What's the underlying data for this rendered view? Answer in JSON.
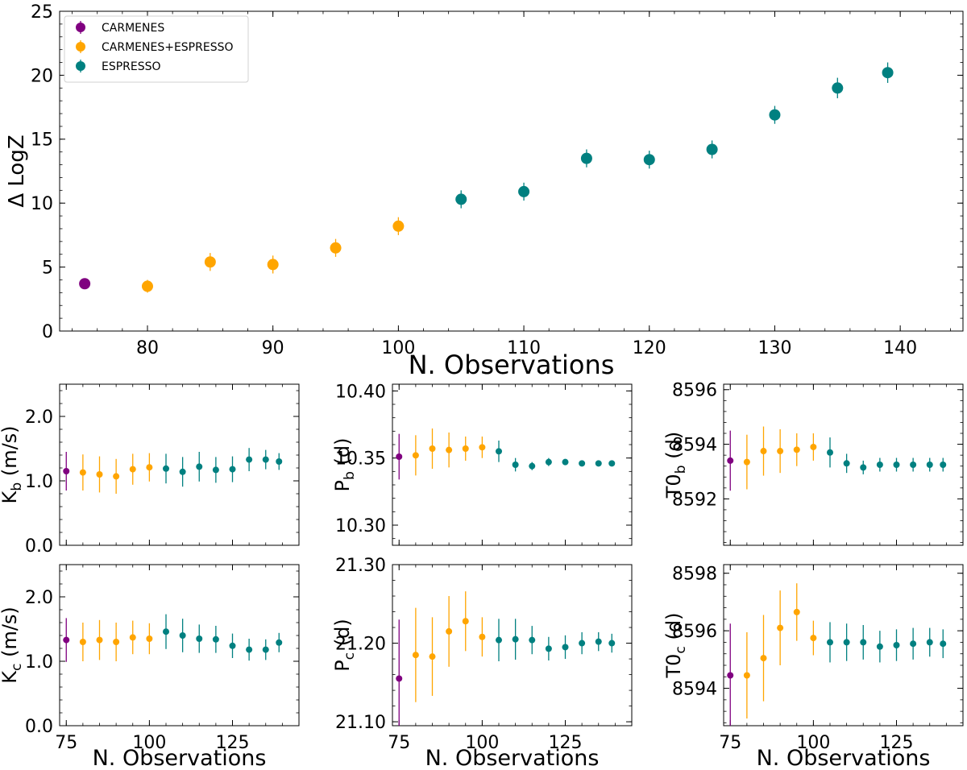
{
  "colors": {
    "CARMENES": "#800080",
    "CARMENES+ESPRESSO": "#FFA500",
    "ESPRESSO": "#008080"
  },
  "chart_data": [
    {
      "id": "main",
      "type": "scatter",
      "xlabel": "N. Observations",
      "ylabel": "Δ LogZ",
      "xlim": [
        73,
        145
      ],
      "ylim": [
        0,
        25
      ],
      "xticks": [
        80,
        90,
        100,
        110,
        120,
        130,
        140
      ],
      "yticks": [
        0,
        5,
        10,
        15,
        20,
        25
      ],
      "tick_labels_x": [
        "80",
        "90",
        "100",
        "110",
        "120",
        "130",
        "140"
      ],
      "tick_labels_y": [
        "0",
        "5",
        "10",
        "15",
        "20",
        "25"
      ],
      "legend": {
        "position": "top-left",
        "entries": [
          "CARMENES",
          "CARMENES+ESPRESSO",
          "ESPRESSO"
        ]
      },
      "series": [
        {
          "name": "CARMENES",
          "x": [
            75
          ],
          "y": [
            3.7
          ],
          "err": [
            0.4
          ]
        },
        {
          "name": "CARMENES+ESPRESSO",
          "x": [
            80,
            85,
            90,
            95,
            100
          ],
          "y": [
            3.5,
            5.4,
            5.2,
            6.5,
            8.2
          ],
          "err": [
            0.5,
            0.7,
            0.7,
            0.7,
            0.7
          ]
        },
        {
          "name": "ESPRESSO",
          "x": [
            105,
            110,
            115,
            120,
            125,
            130,
            135,
            139
          ],
          "y": [
            10.3,
            10.9,
            13.5,
            13.4,
            14.2,
            16.9,
            19.0,
            20.2
          ],
          "err": [
            0.7,
            0.7,
            0.7,
            0.7,
            0.7,
            0.7,
            0.8,
            0.8
          ]
        }
      ]
    },
    {
      "id": "Kb",
      "type": "scatter",
      "xlabel": "",
      "ylabel": "K_b (m/s)",
      "ylabel_main": "K",
      "ylabel_sub": "b",
      "ylabel_suffix": " (m/s)",
      "xlim": [
        73,
        145
      ],
      "ylim": [
        0,
        2.5
      ],
      "xticks": [
        75,
        100,
        125
      ],
      "yticks": [
        0,
        1,
        2
      ],
      "tick_labels_x": [
        "",
        "",
        ""
      ],
      "tick_labels_y": [
        "0.0",
        "1.0",
        "2.0"
      ],
      "x": [
        75,
        80,
        85,
        90,
        95,
        100,
        105,
        110,
        115,
        120,
        125,
        130,
        135,
        139
      ],
      "series_of_point": [
        "CARMENES",
        "CARMENES+ESPRESSO",
        "CARMENES+ESPRESSO",
        "CARMENES+ESPRESSO",
        "CARMENES+ESPRESSO",
        "CARMENES+ESPRESSO",
        "ESPRESSO",
        "ESPRESSO",
        "ESPRESSO",
        "ESPRESSO",
        "ESPRESSO",
        "ESPRESSO",
        "ESPRESSO",
        "ESPRESSO"
      ],
      "y": [
        1.15,
        1.13,
        1.1,
        1.07,
        1.18,
        1.21,
        1.19,
        1.14,
        1.22,
        1.17,
        1.18,
        1.33,
        1.33,
        1.3
      ],
      "err": [
        0.3,
        0.28,
        0.28,
        0.27,
        0.24,
        0.22,
        0.23,
        0.23,
        0.23,
        0.2,
        0.2,
        0.18,
        0.15,
        0.13
      ]
    },
    {
      "id": "Pb",
      "type": "scatter",
      "xlabel": "",
      "ylabel": "P_b (d)",
      "ylabel_main": "P",
      "ylabel_sub": "b",
      "ylabel_suffix": " (d)",
      "xlim": [
        73,
        145
      ],
      "ylim": [
        10.285,
        10.405
      ],
      "xticks": [
        75,
        100,
        125
      ],
      "yticks": [
        10.3,
        10.35,
        10.4
      ],
      "tick_labels_x": [
        "",
        "",
        ""
      ],
      "tick_labels_y": [
        "10.30",
        "10.35",
        "10.40"
      ],
      "x": [
        75,
        80,
        85,
        90,
        95,
        100,
        105,
        110,
        115,
        120,
        125,
        130,
        135,
        139
      ],
      "series_of_point": [
        "CARMENES",
        "CARMENES+ESPRESSO",
        "CARMENES+ESPRESSO",
        "CARMENES+ESPRESSO",
        "CARMENES+ESPRESSO",
        "CARMENES+ESPRESSO",
        "ESPRESSO",
        "ESPRESSO",
        "ESPRESSO",
        "ESPRESSO",
        "ESPRESSO",
        "ESPRESSO",
        "ESPRESSO",
        "ESPRESSO"
      ],
      "y": [
        10.351,
        10.352,
        10.357,
        10.356,
        10.357,
        10.358,
        10.355,
        10.345,
        10.344,
        10.347,
        10.347,
        10.346,
        10.346,
        10.346
      ],
      "err": [
        0.017,
        0.015,
        0.015,
        0.013,
        0.009,
        0.008,
        0.008,
        0.005,
        0.003,
        0.003,
        0.002,
        0.002,
        0.002,
        0.002
      ]
    },
    {
      "id": "T0b",
      "type": "scatter",
      "xlabel": "",
      "ylabel": "T0_b (d)",
      "ylabel_main": "T0",
      "ylabel_sub": "b",
      "ylabel_suffix": " (d)",
      "xlim": [
        73,
        145
      ],
      "ylim": [
        8590.3,
        8596.2
      ],
      "xticks": [
        75,
        100,
        125
      ],
      "yticks": [
        8592,
        8594,
        8596
      ],
      "tick_labels_x": [
        "",
        "",
        ""
      ],
      "tick_labels_y": [
        "8592",
        "8594",
        "8596"
      ],
      "x": [
        75,
        80,
        85,
        90,
        95,
        100,
        105,
        110,
        115,
        120,
        125,
        130,
        135,
        139
      ],
      "series_of_point": [
        "CARMENES",
        "CARMENES+ESPRESSO",
        "CARMENES+ESPRESSO",
        "CARMENES+ESPRESSO",
        "CARMENES+ESPRESSO",
        "CARMENES+ESPRESSO",
        "ESPRESSO",
        "ESPRESSO",
        "ESPRESSO",
        "ESPRESSO",
        "ESPRESSO",
        "ESPRESSO",
        "ESPRESSO",
        "ESPRESSO"
      ],
      "y": [
        8593.4,
        8593.35,
        8593.75,
        8593.75,
        8593.8,
        8593.9,
        8593.7,
        8593.3,
        8593.15,
        8593.25,
        8593.25,
        8593.25,
        8593.25,
        8593.25
      ],
      "err": [
        1.1,
        1.0,
        0.9,
        0.8,
        0.6,
        0.5,
        0.55,
        0.35,
        0.25,
        0.25,
        0.25,
        0.25,
        0.25,
        0.25
      ]
    },
    {
      "id": "Kc",
      "type": "scatter",
      "xlabel": "N. Observations",
      "ylabel": "K_c (m/s)",
      "ylabel_main": "K",
      "ylabel_sub": "c",
      "ylabel_suffix": " (m/s)",
      "xlim": [
        73,
        145
      ],
      "ylim": [
        0,
        2.5
      ],
      "xticks": [
        75,
        100,
        125
      ],
      "yticks": [
        0,
        1,
        2
      ],
      "tick_labels_x": [
        "75",
        "100",
        "125"
      ],
      "tick_labels_y": [
        "0.0",
        "1.0",
        "2.0"
      ],
      "x": [
        75,
        80,
        85,
        90,
        95,
        100,
        105,
        110,
        115,
        120,
        125,
        130,
        135,
        139
      ],
      "series_of_point": [
        "CARMENES",
        "CARMENES+ESPRESSO",
        "CARMENES+ESPRESSO",
        "CARMENES+ESPRESSO",
        "CARMENES+ESPRESSO",
        "CARMENES+ESPRESSO",
        "ESPRESSO",
        "ESPRESSO",
        "ESPRESSO",
        "ESPRESSO",
        "ESPRESSO",
        "ESPRESSO",
        "ESPRESSO",
        "ESPRESSO"
      ],
      "y": [
        1.33,
        1.3,
        1.33,
        1.3,
        1.37,
        1.35,
        1.46,
        1.4,
        1.35,
        1.34,
        1.24,
        1.18,
        1.18,
        1.29
      ],
      "err": [
        0.34,
        0.3,
        0.31,
        0.3,
        0.26,
        0.24,
        0.27,
        0.26,
        0.22,
        0.21,
        0.19,
        0.17,
        0.16,
        0.15
      ]
    },
    {
      "id": "Pc",
      "type": "scatter",
      "xlabel": "N. Observations",
      "ylabel": "P_c (d)",
      "ylabel_main": "P",
      "ylabel_sub": "c",
      "ylabel_suffix": " (d)",
      "xlim": [
        73,
        145
      ],
      "ylim": [
        21.095,
        21.3
      ],
      "xticks": [
        75,
        100,
        125
      ],
      "yticks": [
        21.1,
        21.2,
        21.3
      ],
      "tick_labels_x": [
        "75",
        "100",
        "125"
      ],
      "tick_labels_y": [
        "21.10",
        "21.20",
        "21.30"
      ],
      "x": [
        75,
        80,
        85,
        90,
        95,
        100,
        105,
        110,
        115,
        120,
        125,
        130,
        135,
        139
      ],
      "series_of_point": [
        "CARMENES",
        "CARMENES+ESPRESSO",
        "CARMENES+ESPRESSO",
        "CARMENES+ESPRESSO",
        "CARMENES+ESPRESSO",
        "CARMENES+ESPRESSO",
        "ESPRESSO",
        "ESPRESSO",
        "ESPRESSO",
        "ESPRESSO",
        "ESPRESSO",
        "ESPRESSO",
        "ESPRESSO",
        "ESPRESSO"
      ],
      "y": [
        21.155,
        21.185,
        21.183,
        21.215,
        21.228,
        21.208,
        21.204,
        21.205,
        21.204,
        21.193,
        21.195,
        21.2,
        21.202,
        21.2
      ],
      "err": [
        0.075,
        0.06,
        0.05,
        0.045,
        0.038,
        0.025,
        0.027,
        0.026,
        0.018,
        0.015,
        0.015,
        0.014,
        0.012,
        0.012
      ]
    },
    {
      "id": "T0c",
      "type": "scatter",
      "xlabel": "N. Observations",
      "ylabel": "T0_c (d)",
      "ylabel_main": "T0",
      "ylabel_sub": "c",
      "ylabel_suffix": " (d)",
      "xlim": [
        73,
        145
      ],
      "ylim": [
        8592.7,
        8598.3
      ],
      "xticks": [
        75,
        100,
        125
      ],
      "yticks": [
        8594,
        8596,
        8598
      ],
      "tick_labels_x": [
        "75",
        "100",
        "125"
      ],
      "tick_labels_y": [
        "8594",
        "8596",
        "8598"
      ],
      "x": [
        75,
        80,
        85,
        90,
        95,
        100,
        105,
        110,
        115,
        120,
        125,
        130,
        135,
        139
      ],
      "series_of_point": [
        "CARMENES",
        "CARMENES+ESPRESSO",
        "CARMENES+ESPRESSO",
        "CARMENES+ESPRESSO",
        "CARMENES+ESPRESSO",
        "CARMENES+ESPRESSO",
        "ESPRESSO",
        "ESPRESSO",
        "ESPRESSO",
        "ESPRESSO",
        "ESPRESSO",
        "ESPRESSO",
        "ESPRESSO",
        "ESPRESSO"
      ],
      "y": [
        8594.45,
        8594.45,
        8595.05,
        8596.1,
        8596.65,
        8595.75,
        8595.6,
        8595.6,
        8595.6,
        8595.45,
        8595.5,
        8595.55,
        8595.6,
        8595.55
      ],
      "err": [
        1.8,
        1.5,
        1.5,
        1.3,
        1.0,
        0.6,
        0.7,
        0.65,
        0.6,
        0.55,
        0.55,
        0.55,
        0.5,
        0.5
      ]
    }
  ]
}
